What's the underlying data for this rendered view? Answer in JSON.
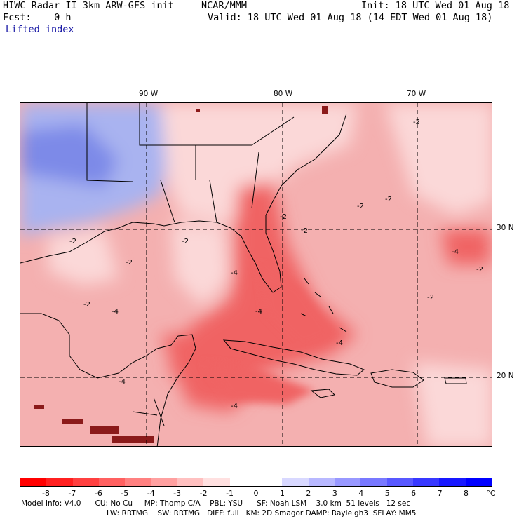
{
  "header": {
    "left_line1": "HIWC Radar II 3km ARW-GFS init",
    "center_line1": "NCAR/MMM",
    "init": "Init: 18 UTC Wed 01 Aug 18",
    "fcst": "Fcst:    0 h",
    "valid": "Valid: 18 UTC Wed 01 Aug 18 (14 EDT Wed 01 Aug 18)",
    "field": "Lifted index"
  },
  "map": {
    "lon_labels": [
      "90 W",
      "80 W",
      "70 W"
    ],
    "lat_labels": [
      "30 N",
      "20 N"
    ],
    "contour_label": "-2",
    "contour_label_strong": "-4",
    "colors": {
      "ocean_base": "#f4b0b0",
      "strong": "#f06464",
      "weak": "#fbd8d8",
      "positive": "#a9b3f0",
      "strong_positive": "#7d8ae8",
      "coast": "#000000",
      "island": "#8b1a1a"
    }
  },
  "colorbar": {
    "labels": [
      "-8",
      "-7",
      "-6",
      "-5",
      "-4",
      "-3",
      "-2",
      "-1",
      "0",
      "1",
      "2",
      "3",
      "4",
      "5",
      "6",
      "7",
      "8"
    ],
    "unit": "°C",
    "colors": [
      "#ff0000",
      "#ff2020",
      "#ff4040",
      "#ff6060",
      "#ff8080",
      "#ffa0a0",
      "#ffc0c0",
      "#ffe0e0",
      "#ffffff",
      "#ffffff",
      "#d8d8ff",
      "#b8b8ff",
      "#9898ff",
      "#7878ff",
      "#5858ff",
      "#3838ff",
      "#1818ff",
      "#0000ff"
    ]
  },
  "footer": {
    "line1": "Model Info: V4.0      CU: No Cu     MP: Thomp C/A    PBL: YSU      SF: Noah LSM    3.0 km  51 levels   12 sec",
    "line2": "LW: RRTMG    SW: RRTMG   DIFF: full   KM: 2D Smagor DAMP: Rayleigh3  SFLAY: MM5"
  }
}
